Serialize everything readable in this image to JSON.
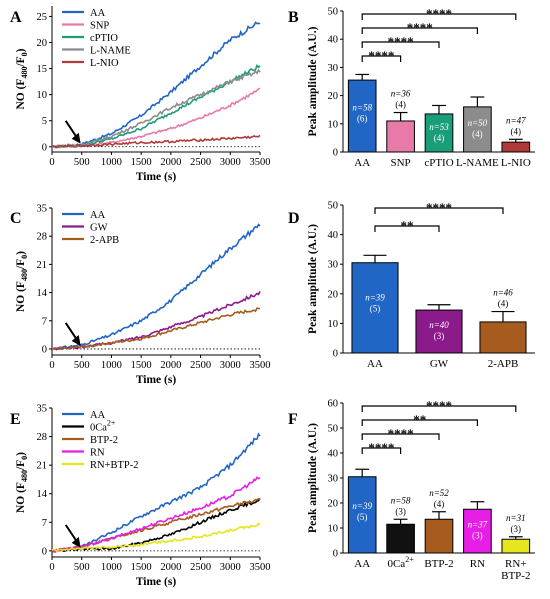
{
  "chart_data": [
    {
      "panel": "A",
      "type": "line",
      "xlabel": "Time (s)",
      "ylabel": "NO (F480/F0)",
      "xticks": [
        0,
        500,
        1000,
        1500,
        2000,
        2500,
        3000,
        3500
      ],
      "yticks": [
        0,
        5,
        10,
        15,
        20,
        25
      ],
      "xlim": [
        0,
        3500
      ],
      "ylim": [
        -1,
        27
      ],
      "onset_time": 500,
      "series": [
        {
          "name": "AA",
          "color": "#2166c4",
          "x": [
            0,
            500,
            1000,
            1500,
            2000,
            2500,
            3000,
            3500
          ],
          "y": [
            0,
            0.5,
            2.5,
            6,
            10.5,
            15.5,
            20.5,
            24
          ]
        },
        {
          "name": "SNP",
          "color": "#e77aa8",
          "x": [
            0,
            500,
            1000,
            1500,
            2000,
            2500,
            3000,
            3500
          ],
          "y": [
            0,
            0.2,
            0.8,
            2,
            3.5,
            5.5,
            8,
            11
          ]
        },
        {
          "name": "cPTIO",
          "color": "#1a9e7a",
          "x": [
            0,
            500,
            1000,
            1500,
            2000,
            2500,
            3000,
            3500
          ],
          "y": [
            0,
            0.3,
            1.5,
            3.5,
            6.5,
            9.5,
            12.5,
            15.5
          ]
        },
        {
          "name": "L-NAME",
          "color": "#8c8c8c",
          "x": [
            0,
            500,
            1000,
            1500,
            2000,
            2500,
            3000,
            3500
          ],
          "y": [
            0,
            0.3,
            2,
            4.5,
            7.5,
            10,
            12.5,
            14.5
          ]
        },
        {
          "name": "L-NIO",
          "color": "#b03a3a",
          "x": [
            0,
            500,
            1000,
            1500,
            2000,
            2500,
            3000,
            3500
          ],
          "y": [
            0,
            0.2,
            0.5,
            0.8,
            1,
            1.3,
            1.6,
            2
          ]
        }
      ]
    },
    {
      "panel": "B",
      "type": "bar",
      "ylabel": "Peak amplitude (A.U.)",
      "yticks": [
        0,
        10,
        20,
        30,
        40,
        50
      ],
      "ylim": [
        0,
        50
      ],
      "categories": [
        "AA",
        "SNP",
        "cPTIO",
        "L-NAME",
        "L-NIO"
      ],
      "values": [
        25.5,
        11,
        13.5,
        16,
        3.5
      ],
      "errors": [
        2,
        3,
        3,
        3.5,
        1
      ],
      "colors": [
        "#2166c4",
        "#e77aa8",
        "#1a9e7a",
        "#8c8c8c",
        "#b03a3a"
      ],
      "n_labels": [
        "n=58",
        "n=36",
        "n=53",
        "n=50",
        "n=47"
      ],
      "count_labels": [
        "(6)",
        "(4)",
        "(4)",
        "(4)",
        "(4)"
      ],
      "significance": [
        {
          "from": "AA",
          "to": "SNP",
          "label": "****"
        },
        {
          "from": "AA",
          "to": "cPTIO",
          "label": "****"
        },
        {
          "from": "AA",
          "to": "L-NAME",
          "label": "****"
        },
        {
          "from": "AA",
          "to": "L-NIO",
          "label": "****"
        }
      ]
    },
    {
      "panel": "C",
      "type": "line",
      "xlabel": "Time (s)",
      "ylabel": "NO (F480/F0)",
      "xticks": [
        0,
        500,
        1000,
        1500,
        2000,
        2500,
        3000,
        3500
      ],
      "yticks": [
        0,
        7,
        14,
        21,
        28,
        35
      ],
      "xlim": [
        0,
        3500
      ],
      "ylim": [
        -1.5,
        35
      ],
      "onset_time": 500,
      "series": [
        {
          "name": "AA",
          "color": "#2166c4",
          "x": [
            0,
            500,
            1000,
            1500,
            2000,
            2500,
            3000,
            3500
          ],
          "y": [
            0,
            1,
            3.5,
            7,
            12,
            18.5,
            25,
            31
          ]
        },
        {
          "name": "GW",
          "color": "#8b1a8b",
          "x": [
            0,
            500,
            1000,
            1500,
            2000,
            2500,
            3000,
            3500
          ],
          "y": [
            0,
            0.5,
            1.5,
            3,
            5.5,
            8,
            11,
            14
          ]
        },
        {
          "name": "2-APB",
          "color": "#a65c1e",
          "x": [
            0,
            500,
            1000,
            1500,
            2000,
            2500,
            3000,
            3500
          ],
          "y": [
            0,
            0.5,
            1.5,
            2.5,
            4.5,
            6.5,
            8.5,
            10
          ]
        }
      ]
    },
    {
      "panel": "D",
      "type": "bar",
      "ylabel": "Peak amplitude (A.U.)",
      "yticks": [
        0,
        10,
        20,
        30,
        40,
        50
      ],
      "ylim": [
        0,
        50
      ],
      "categories": [
        "AA",
        "GW",
        "2-APB"
      ],
      "values": [
        30.5,
        14.5,
        10.5
      ],
      "errors": [
        2.5,
        1.8,
        3.5
      ],
      "colors": [
        "#2166c4",
        "#8b1a8b",
        "#a65c1e"
      ],
      "n_labels": [
        "n=39",
        "n=40",
        "n=46"
      ],
      "count_labels": [
        "(5)",
        "(3)",
        "(4)"
      ],
      "significance": [
        {
          "from": "AA",
          "to": "GW",
          "label": "**"
        },
        {
          "from": "AA",
          "to": "2-APB",
          "label": "****"
        }
      ]
    },
    {
      "panel": "E",
      "type": "line",
      "xlabel": "Time (s)",
      "ylabel": "NO (F480/F0)",
      "xticks": [
        0,
        500,
        1000,
        1500,
        2000,
        2500,
        3000,
        3500
      ],
      "yticks": [
        0,
        7,
        14,
        21,
        28,
        35
      ],
      "xlim": [
        0,
        3500
      ],
      "ylim": [
        -1.5,
        35
      ],
      "onset_time": 500,
      "series": [
        {
          "name": "AA",
          "color": "#2166c4",
          "x": [
            0,
            500,
            1000,
            1500,
            2000,
            2500,
            3000,
            3500
          ],
          "y": [
            0,
            1,
            4.5,
            8.5,
            12,
            15.5,
            21,
            28.5
          ]
        },
        {
          "name": "0Ca2+",
          "color": "#000000",
          "x": [
            0,
            500,
            1000,
            1500,
            2000,
            2500,
            3000,
            3500
          ],
          "y": [
            0,
            0.5,
            0.5,
            2,
            4,
            7,
            10,
            12.5
          ]
        },
        {
          "name": "BTP-2",
          "color": "#a65c1e",
          "x": [
            0,
            500,
            1000,
            1500,
            2000,
            2500,
            3000,
            3500
          ],
          "y": [
            0,
            1,
            3,
            5,
            7,
            9,
            11,
            12.5
          ]
        },
        {
          "name": "RN",
          "color": "#e61ee6",
          "x": [
            0,
            500,
            1000,
            1500,
            2000,
            2500,
            3000,
            3500
          ],
          "y": [
            0,
            1,
            3,
            5.5,
            8,
            10.5,
            13.5,
            18
          ]
        },
        {
          "name": "RN+BTP-2",
          "color": "#e6e61e",
          "x": [
            0,
            500,
            1000,
            1500,
            2000,
            2500,
            3000,
            3500
          ],
          "y": [
            0,
            0.5,
            1,
            1.5,
            2.5,
            3.5,
            5,
            6.5
          ]
        }
      ]
    },
    {
      "panel": "F",
      "type": "bar",
      "ylabel": "Peak amplitude (A.U.)",
      "yticks": [
        0,
        10,
        20,
        30,
        40,
        50,
        60
      ],
      "ylim": [
        0,
        60
      ],
      "categories": [
        "AA",
        "0Ca2+",
        "BTP-2",
        "RN",
        "RN+BTP-2"
      ],
      "values": [
        30.5,
        11.5,
        13.5,
        17.5,
        5.5
      ],
      "errors": [
        3,
        2,
        3,
        3,
        1
      ],
      "colors": [
        "#2166c4",
        "#111111",
        "#a65c1e",
        "#e61ee6",
        "#e6e61e"
      ],
      "n_labels": [
        "n=39",
        "n=58",
        "n=52",
        "n=37",
        "n=31"
      ],
      "count_labels": [
        "(5)",
        "(3)",
        "(4)",
        "(3)",
        "(3)"
      ],
      "significance": [
        {
          "from": "AA",
          "to": "0Ca2+",
          "label": "****"
        },
        {
          "from": "AA",
          "to": "BTP-2",
          "label": "****"
        },
        {
          "from": "AA",
          "to": "RN",
          "label": "**"
        },
        {
          "from": "AA",
          "to": "RN+BTP-2",
          "label": "****"
        }
      ]
    }
  ]
}
